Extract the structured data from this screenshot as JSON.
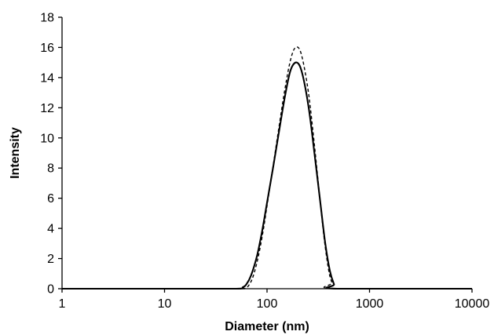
{
  "chart_data": {
    "type": "line",
    "title": "",
    "xlabel": "Diameter (nm)",
    "ylabel": "Intensity",
    "x_scale": "log",
    "xlim": [
      1,
      10000
    ],
    "ylim": [
      0,
      18
    ],
    "x_ticks": [
      1,
      10,
      100,
      1000,
      10000
    ],
    "x_tick_labels": [
      "1",
      "10",
      "100",
      "1000",
      "10000"
    ],
    "y_ticks": [
      0,
      2,
      4,
      6,
      8,
      10,
      12,
      14,
      16,
      18
    ],
    "y_tick_labels": [
      "0",
      "2",
      "4",
      "6",
      "8",
      "10",
      "12",
      "14",
      "16",
      "18"
    ],
    "grid": false,
    "legend": "none",
    "series": [
      {
        "style": "solid",
        "color": "#000000",
        "x": [
          1,
          10,
          50,
          58,
          63,
          70,
          80,
          90,
          100,
          115,
          130,
          150,
          170,
          195,
          220,
          255,
          290,
          330,
          370,
          410,
          450,
          480,
          10000
        ],
        "y": [
          0,
          0,
          0,
          0.1,
          0.3,
          0.9,
          2.2,
          3.9,
          5.7,
          8.1,
          10.3,
          12.8,
          14.5,
          15.0,
          14.3,
          12.0,
          9.0,
          5.8,
          3.0,
          1.2,
          0.3,
          0,
          0
        ]
      },
      {
        "style": "dashed",
        "color": "#000000",
        "x": [
          1,
          10,
          50,
          60,
          66,
          73,
          82,
          92,
          100,
          115,
          130,
          150,
          170,
          190,
          215,
          250,
          280,
          320,
          360,
          400,
          430,
          460,
          10000
        ],
        "y": [
          0,
          0,
          0,
          0,
          0.2,
          0.8,
          2.1,
          3.9,
          5.5,
          8.2,
          10.6,
          13.3,
          15.2,
          16.0,
          15.6,
          13.3,
          10.5,
          6.7,
          3.4,
          1.2,
          0.4,
          0,
          0
        ]
      }
    ]
  }
}
